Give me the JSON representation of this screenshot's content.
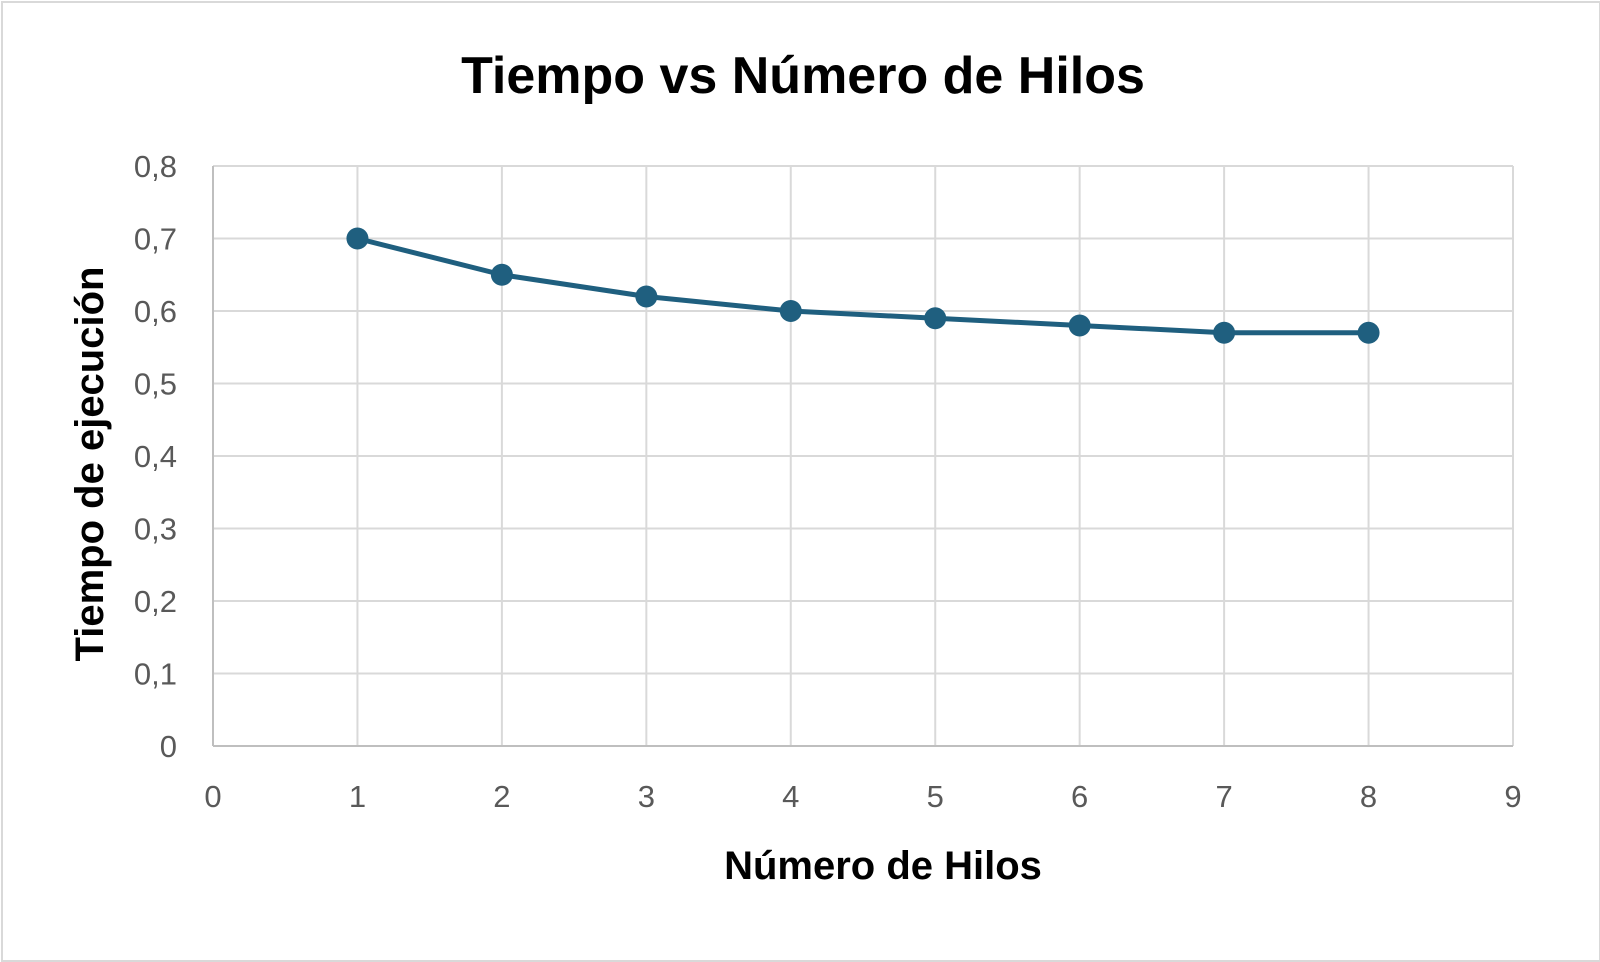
{
  "chart_data": {
    "type": "line",
    "title": "Tiempo vs Número de Hilos",
    "xlabel": "Número de Hilos",
    "ylabel": "Tiempo de ejecución",
    "xlim": [
      0,
      9
    ],
    "ylim": [
      0,
      0.8
    ],
    "x_ticks": [
      0,
      1,
      2,
      3,
      4,
      5,
      6,
      7,
      8,
      9
    ],
    "x_tick_labels": [
      "0",
      "1",
      "2",
      "3",
      "4",
      "5",
      "6",
      "7",
      "8",
      "9"
    ],
    "y_ticks": [
      0,
      0.1,
      0.2,
      0.3,
      0.4,
      0.5,
      0.6,
      0.7,
      0.8
    ],
    "y_tick_labels": [
      "0",
      "0,1",
      "0,2",
      "0,3",
      "0,4",
      "0,5",
      "0,6",
      "0,7",
      "0,8"
    ],
    "grid": true,
    "legend": "none",
    "series": [
      {
        "color": "#1f5f7f",
        "x": [
          1,
          2,
          3,
          4,
          5,
          6,
          7,
          8
        ],
        "y": [
          0.7,
          0.65,
          0.62,
          0.6,
          0.59,
          0.58,
          0.57,
          0.57
        ]
      }
    ]
  }
}
